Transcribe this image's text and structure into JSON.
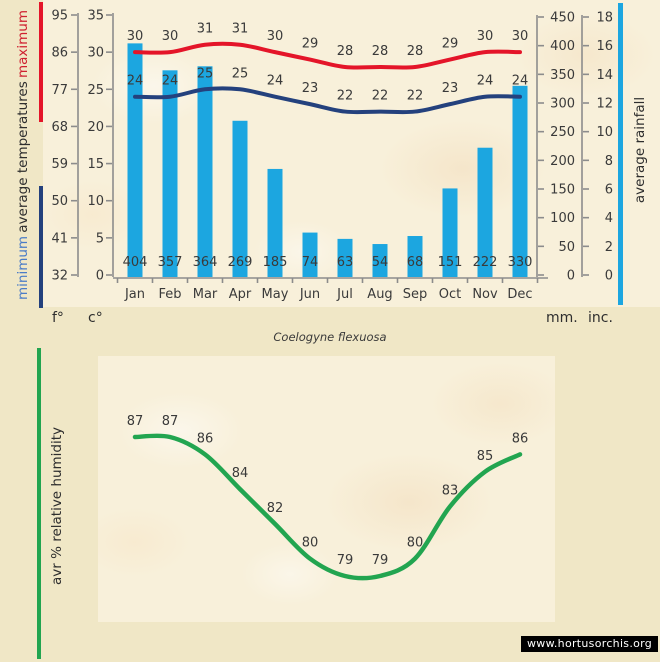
{
  "title": "Coelogyne flexuosa",
  "watermark": "www.hortusorchis.org",
  "colors": {
    "rainfall_bar": "#1ca6e0",
    "max_temp_line": "#e41529",
    "min_temp_line": "#24417d",
    "humidity_line": "#22a550",
    "min_label": "#4a7cc7",
    "max_label": "#cf2030",
    "axis": "#8c8c8c",
    "text": "#3a3a3a"
  },
  "chart_data": [
    {
      "type": "bar",
      "title": "climate diagram: average temperatures and rainfall by month",
      "categories": [
        "Jan",
        "Feb",
        "Mar",
        "Apr",
        "May",
        "Jun",
        "Jul",
        "Aug",
        "Sep",
        "Oct",
        "Nov",
        "Dec"
      ],
      "series": [
        {
          "name": "average rainfall (mm)",
          "type": "bar",
          "values": [
            404,
            357,
            364,
            269,
            185,
            74,
            63,
            54,
            68,
            151,
            222,
            330
          ]
        },
        {
          "name": "maximum average temperature (c)",
          "type": "line",
          "values": [
            30,
            30,
            31,
            31,
            30,
            29,
            28,
            28,
            28,
            29,
            30,
            30
          ]
        },
        {
          "name": "minimum average temperature (c)",
          "type": "line",
          "values": [
            24,
            24,
            25,
            25,
            24,
            23,
            22,
            22,
            22,
            23,
            24,
            24
          ]
        }
      ],
      "axes": {
        "fahrenheit": {
          "unit": "f°",
          "ticks": [
            95,
            86,
            77,
            68,
            59,
            50,
            41,
            32
          ]
        },
        "celsius": {
          "unit": "c°",
          "ticks": [
            35,
            30,
            25,
            20,
            15,
            10,
            5,
            0
          ],
          "range": [
            0,
            35
          ]
        },
        "mm": {
          "unit": "mm.",
          "ticks": [
            450,
            400,
            350,
            300,
            250,
            200,
            150,
            100,
            50,
            0
          ],
          "range": [
            0,
            450
          ]
        },
        "inches": {
          "unit": "inc.",
          "ticks": [
            18,
            16,
            14,
            12,
            10,
            8,
            6,
            4,
            2,
            0
          ],
          "range": [
            0,
            18
          ]
        }
      },
      "left_label": {
        "bottom": "minimum",
        "middle": "average temperatures",
        "top": "maximum"
      },
      "right_label": "average rainfall",
      "grid": false,
      "legend_position": "none"
    },
    {
      "type": "line",
      "title": "average relative humidity by month",
      "categories": [
        "Jan",
        "Feb",
        "Mar",
        "Apr",
        "May",
        "Jun",
        "Jul",
        "Aug",
        "Sep",
        "Oct",
        "Nov",
        "Dec"
      ],
      "values": [
        87,
        87,
        86,
        84,
        82,
        80,
        79,
        79,
        80,
        83,
        85,
        86
      ],
      "xlabel": "",
      "ylabel": "avr %  relative humidity",
      "ylim": [
        78,
        88
      ],
      "grid": false
    }
  ]
}
